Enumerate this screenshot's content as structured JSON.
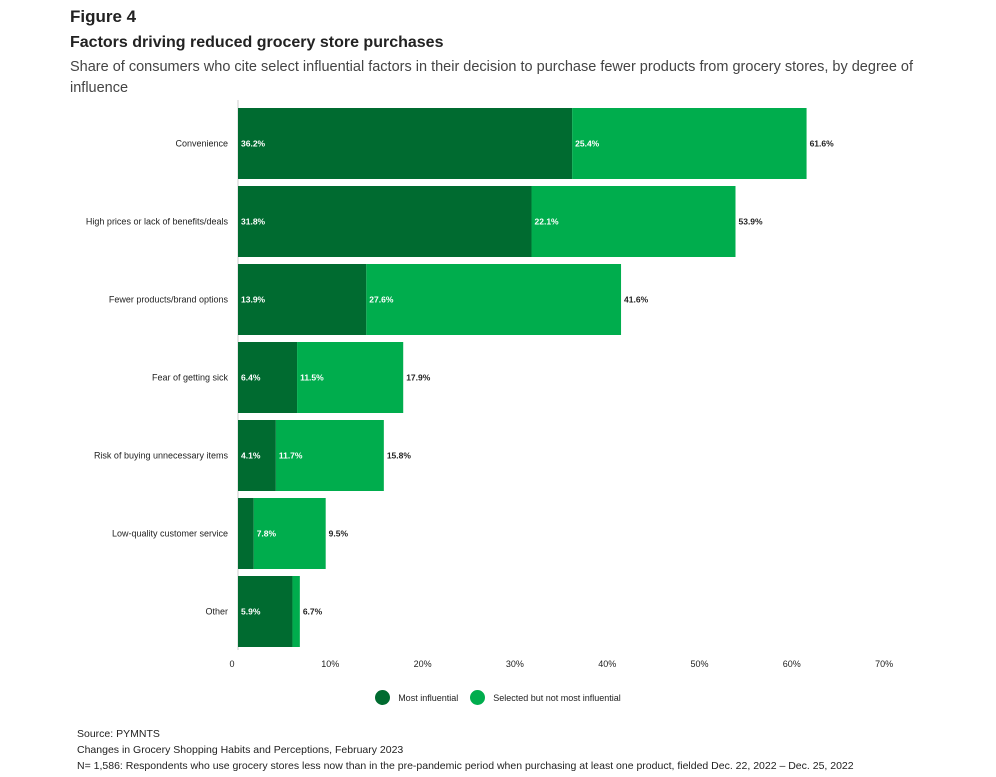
{
  "figure_label": "Figure 4",
  "title": "Factors driving reduced grocery store purchases",
  "subtitle": "Share of consumers who cite select influential factors in their decision to purchase fewer products from grocery stores, by degree of influence",
  "colors": {
    "most": "#006b30",
    "selected": "#00ad4d",
    "axis": "#cccccc",
    "text": "#222222"
  },
  "chart_data": {
    "type": "bar",
    "orientation": "horizontal",
    "stacked": true,
    "categories": [
      "Convenience",
      "High prices or lack of benefits/deals",
      "Fewer products/brand options",
      "Fear of getting sick",
      "Risk of buying unnecessary items",
      "Low-quality customer service",
      "Other"
    ],
    "series": [
      {
        "name": "Most influential",
        "values": [
          36.2,
          31.8,
          13.9,
          6.4,
          4.1,
          1.7,
          5.9
        ],
        "labels": [
          "36.2%",
          "31.8%",
          "13.9%",
          "6.4%",
          "4.1%",
          "",
          "5.9%"
        ]
      },
      {
        "name": "Selected but not most influential",
        "values": [
          25.4,
          22.1,
          27.6,
          11.5,
          11.7,
          7.8,
          0.8
        ],
        "labels": [
          "25.4%",
          "22.1%",
          "27.6%",
          "11.5%",
          "11.7%",
          "7.8%",
          ""
        ]
      }
    ],
    "totals": [
      "61.6%",
      "53.9%",
      "41.6%",
      "17.9%",
      "15.8%",
      "9.5%",
      "6.7%"
    ],
    "total_values": [
      61.6,
      53.9,
      41.6,
      17.9,
      15.8,
      9.5,
      6.7
    ],
    "xlim": [
      0,
      70
    ],
    "xticks": [
      0,
      10,
      20,
      30,
      40,
      50,
      60,
      70
    ],
    "xtick_labels": [
      "0",
      "10%",
      "20%",
      "30%",
      "40%",
      "50%",
      "60%",
      "70%"
    ],
    "legend_position": "bottom-center"
  },
  "legend": [
    {
      "label": "Most influential",
      "color": "#006b30"
    },
    {
      "label": "Selected but not most influential",
      "color": "#00ad4d"
    }
  ],
  "footer": {
    "source": "Source: PYMNTS",
    "report": "Changes in Grocery Shopping Habits and Perceptions, February 2023",
    "note": "N= 1,586: Respondents who use grocery stores less now than in the pre-pandemic period when purchasing at least one product, fielded Dec. 22, 2022 – Dec. 25, 2022"
  }
}
